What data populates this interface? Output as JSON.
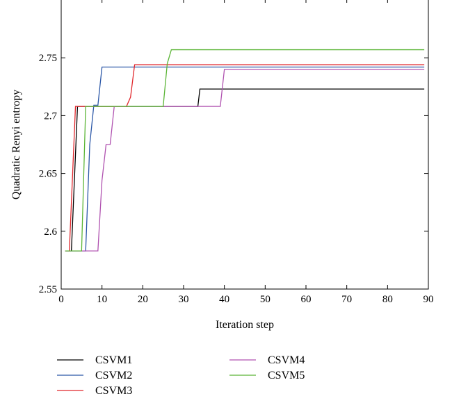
{
  "chart_data": {
    "type": "line",
    "title": "",
    "xlabel": "Iteration step",
    "ylabel": "Quadratic Renyi entropy",
    "xlim": [
      0,
      90
    ],
    "ylim": [
      2.55,
      2.8
    ],
    "xticks": [
      0,
      10,
      20,
      30,
      40,
      50,
      60,
      70,
      80,
      90
    ],
    "yticks": [
      2.55,
      2.6,
      2.65,
      2.7,
      2.75
    ],
    "ytick_labels": [
      "2.55",
      "2.6",
      "2.65",
      "2.7",
      "2.75"
    ],
    "grid": false,
    "legend_position": "bottom",
    "series": [
      {
        "name": "CSVM1",
        "color": "#000000",
        "points": [
          [
            1,
            2.583
          ],
          [
            2.5,
            2.583
          ],
          [
            4,
            2.708
          ],
          [
            33.5,
            2.708
          ],
          [
            34,
            2.723
          ],
          [
            89,
            2.723
          ]
        ]
      },
      {
        "name": "CSVM2",
        "color": "#2b57a7",
        "points": [
          [
            1,
            2.583
          ],
          [
            6,
            2.583
          ],
          [
            7,
            2.675
          ],
          [
            8,
            2.709
          ],
          [
            9,
            2.709
          ],
          [
            10,
            2.742
          ],
          [
            89,
            2.742
          ]
        ]
      },
      {
        "name": "CSVM3",
        "color": "#e0262b",
        "points": [
          [
            1,
            2.583
          ],
          [
            2,
            2.583
          ],
          [
            3.5,
            2.708
          ],
          [
            16,
            2.708
          ],
          [
            17,
            2.716
          ],
          [
            18,
            2.744
          ],
          [
            89,
            2.744
          ]
        ]
      },
      {
        "name": "CSVM4",
        "color": "#b052b0",
        "points": [
          [
            1,
            2.583
          ],
          [
            9,
            2.583
          ],
          [
            10,
            2.644
          ],
          [
            11,
            2.675
          ],
          [
            12,
            2.675
          ],
          [
            13,
            2.708
          ],
          [
            39,
            2.708
          ],
          [
            40,
            2.74
          ],
          [
            89,
            2.74
          ]
        ]
      },
      {
        "name": "CSVM5",
        "color": "#5bb536",
        "points": [
          [
            1,
            2.583
          ],
          [
            5,
            2.583
          ],
          [
            6,
            2.708
          ],
          [
            25,
            2.708
          ],
          [
            26,
            2.745
          ],
          [
            27,
            2.757
          ],
          [
            89,
            2.757
          ]
        ]
      }
    ]
  }
}
